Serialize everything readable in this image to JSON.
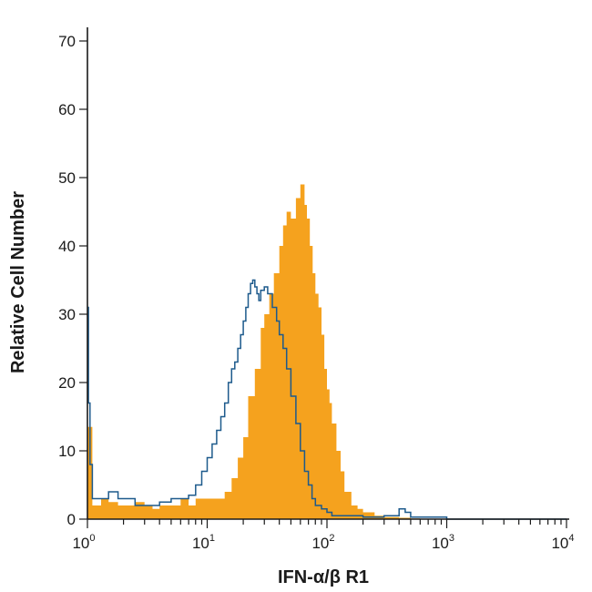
{
  "chart_data": {
    "type": "histogram",
    "x_scale": "log",
    "xlim": [
      1,
      10000
    ],
    "ylim": [
      0,
      72
    ],
    "x_major_ticks": [
      1,
      10,
      100,
      1000,
      10000
    ],
    "x_tick_labels": [
      {
        "base": "10",
        "exp": "0"
      },
      {
        "base": "10",
        "exp": "1"
      },
      {
        "base": "10",
        "exp": "2"
      },
      {
        "base": "10",
        "exp": "3"
      },
      {
        "base": "10",
        "exp": "4"
      }
    ],
    "y_ticks": [
      0,
      10,
      20,
      30,
      40,
      50,
      60,
      70
    ],
    "y_tick_labels": [
      "0",
      "10",
      "20",
      "30",
      "40",
      "50",
      "60",
      "70"
    ],
    "xlabel": "IFN-α/β R1",
    "ylabel": "Relative Cell Number",
    "grid": false,
    "series": [
      {
        "style": "filled",
        "color": "#f5a21e",
        "x": [
          1.0,
          1.1,
          1.3,
          1.5,
          1.8,
          2,
          2.5,
          3,
          3.5,
          4,
          5,
          6,
          7,
          8,
          10,
          12,
          14,
          16,
          18,
          20,
          22,
          25,
          28,
          30,
          33,
          36,
          40,
          43,
          46,
          50,
          55,
          60,
          65,
          68,
          72,
          76,
          80,
          85,
          90,
          95,
          100,
          105,
          110,
          120,
          130,
          140,
          160,
          180,
          200,
          250,
          300,
          400,
          500,
          600,
          1000,
          10000
        ],
        "values": [
          13.5,
          2,
          3,
          2.5,
          2,
          2,
          2.5,
          2,
          1.5,
          2,
          2,
          3,
          2,
          3,
          3,
          3,
          4,
          6,
          9,
          12,
          18,
          22,
          28,
          30,
          33,
          36,
          40,
          43,
          45,
          44,
          47,
          49,
          46,
          44,
          40,
          36,
          33,
          31,
          27,
          22,
          19,
          17,
          14,
          10,
          7,
          4,
          2,
          1.5,
          1,
          0.5,
          0.3,
          0.2,
          0.1,
          0,
          0,
          0
        ]
      },
      {
        "style": "outline",
        "color": "#1d5a8c",
        "x": [
          1.0,
          1.02,
          1.05,
          1.1,
          1.3,
          1.5,
          1.8,
          2,
          2.5,
          3,
          3.5,
          4,
          5,
          6,
          7,
          8,
          9,
          10,
          11,
          12,
          13,
          14,
          15,
          16,
          17,
          18,
          19,
          20,
          21,
          22,
          23,
          24,
          25,
          26,
          27,
          28,
          30,
          32,
          35,
          38,
          40,
          43,
          46,
          50,
          55,
          60,
          65,
          70,
          75,
          80,
          90,
          100,
          110,
          120,
          150,
          200,
          300,
          400,
          450,
          500,
          1000,
          10000
        ],
        "values": [
          31,
          17,
          8,
          3,
          3,
          4,
          3,
          3,
          2,
          2,
          2,
          2.5,
          3,
          3,
          3.5,
          5,
          7,
          9,
          11,
          13,
          15,
          17,
          20,
          22,
          23,
          25,
          27,
          29,
          31,
          33,
          34.5,
          35,
          34,
          33,
          32,
          33.5,
          34,
          33,
          31,
          29,
          27,
          25,
          22,
          18,
          14,
          10,
          7,
          5,
          3,
          2,
          1.5,
          1,
          0.5,
          0.5,
          0.5,
          0.3,
          0.5,
          1.5,
          1,
          0.3,
          0,
          0
        ]
      }
    ]
  }
}
